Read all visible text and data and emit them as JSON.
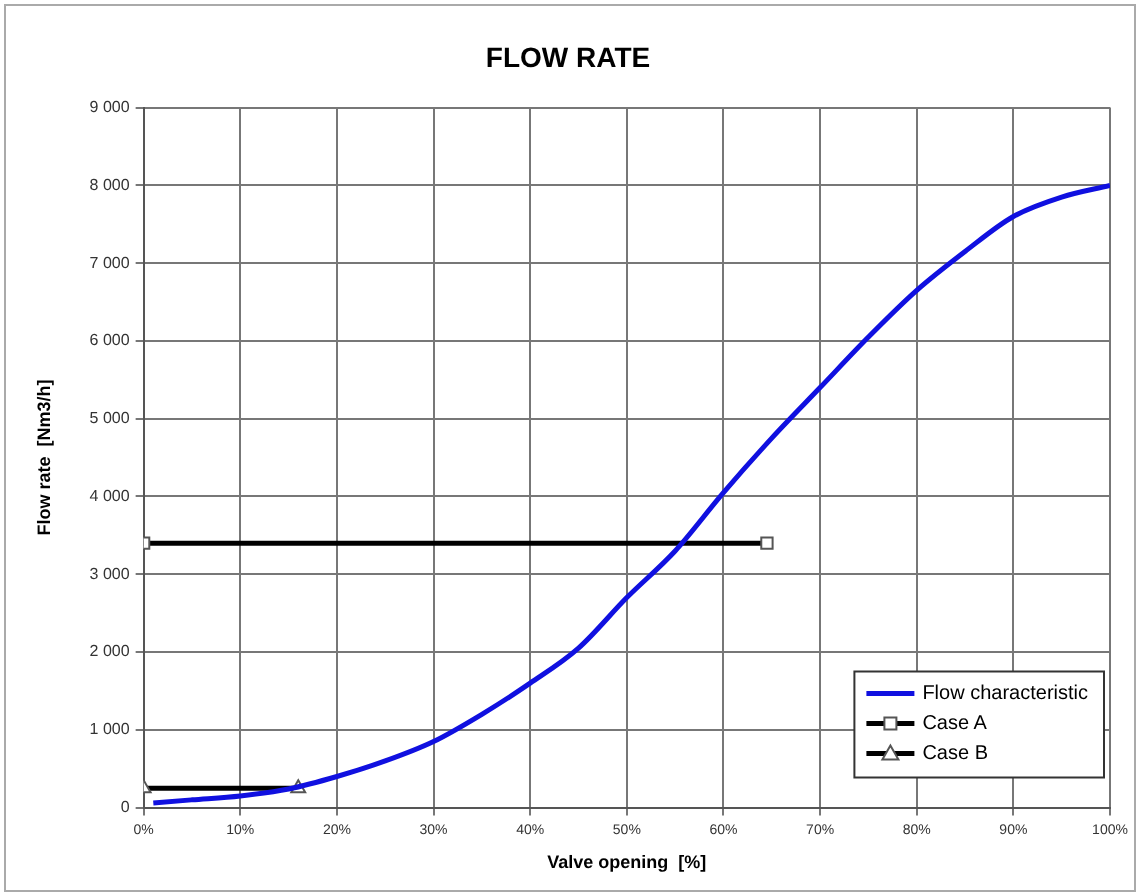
{
  "chart_data": {
    "type": "line",
    "title": "FLOW RATE",
    "xlabel": "Valve opening  [%]",
    "ylabel": "Flow rate  [Nm3/h]",
    "xlim": [
      0,
      100
    ],
    "ylim": [
      0,
      9000
    ],
    "xticks": [
      {
        "value": 0,
        "label": "0%"
      },
      {
        "value": 10,
        "label": "10%"
      },
      {
        "value": 20,
        "label": "20%"
      },
      {
        "value": 30,
        "label": "30%"
      },
      {
        "value": 40,
        "label": "40%"
      },
      {
        "value": 50,
        "label": "50%"
      },
      {
        "value": 60,
        "label": "60%"
      },
      {
        "value": 70,
        "label": "70%"
      },
      {
        "value": 80,
        "label": "80%"
      },
      {
        "value": 90,
        "label": "90%"
      },
      {
        "value": 100,
        "label": "100%"
      }
    ],
    "yticks": [
      0,
      {
        "value": 1000,
        "label": "1 000"
      },
      {
        "value": 2000,
        "label": "2 000"
      },
      {
        "value": 3000,
        "label": "3 000"
      },
      {
        "value": 4000,
        "label": "4 000"
      },
      {
        "value": 5000,
        "label": "5 000"
      },
      {
        "value": 6000,
        "label": "6 000"
      },
      {
        "value": 7000,
        "label": "7 000"
      },
      {
        "value": 8000,
        "label": "8 000"
      },
      {
        "value": 9000,
        "label": "9 000"
      }
    ],
    "grid": true,
    "legend": "bottom right",
    "series": [
      {
        "name": "Flow characteristic",
        "color": "#1010e0",
        "marker": "none",
        "x": [
          1,
          5,
          10,
          15,
          20,
          25,
          30,
          35,
          40,
          45,
          50,
          55,
          60,
          65,
          70,
          75,
          80,
          85,
          90,
          95,
          100
        ],
        "values": [
          60,
          100,
          150,
          240,
          400,
          600,
          850,
          1200,
          1600,
          2050,
          2700,
          3300,
          4050,
          4750,
          5400,
          6050,
          6650,
          7150,
          7600,
          7850,
          8000
        ]
      },
      {
        "name": "Case A",
        "color": "#000000",
        "marker": "square",
        "x": [
          0,
          64.5
        ],
        "values": [
          3400,
          3400
        ]
      },
      {
        "name": "Case B",
        "color": "#000000",
        "marker": "triangle",
        "x": [
          0,
          16
        ],
        "values": [
          250,
          250
        ]
      }
    ]
  }
}
